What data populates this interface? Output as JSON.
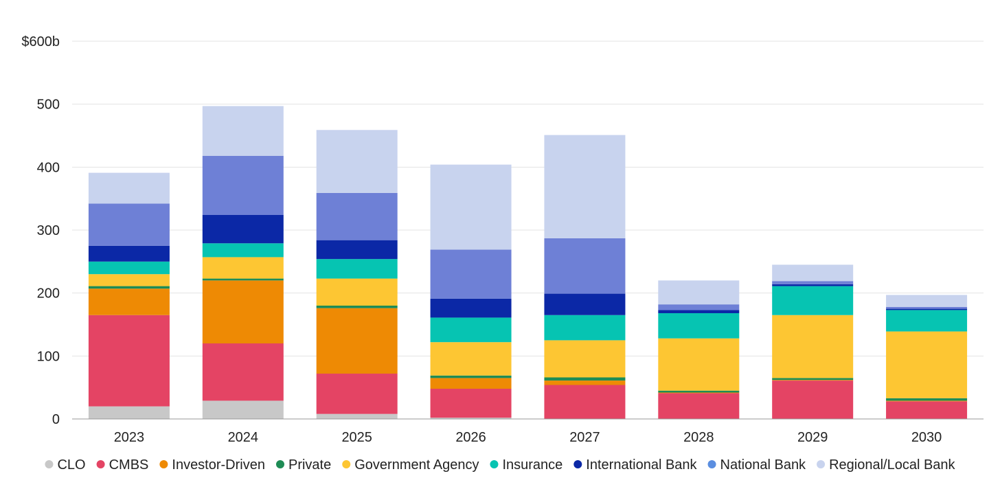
{
  "chart_data": {
    "type": "bar",
    "stacked": true,
    "categories": [
      "2023",
      "2024",
      "2025",
      "2026",
      "2027",
      "2028",
      "2029",
      "2030"
    ],
    "ylim": [
      0,
      600
    ],
    "yticks": [
      0,
      100,
      200,
      300,
      400,
      500,
      600
    ],
    "ytick_labels": [
      "0",
      "100",
      "200",
      "300",
      "400",
      "500",
      "$600b"
    ],
    "grid": true,
    "legend_position": "bottom",
    "series": [
      {
        "name": "CLO",
        "color": "#c8c8c8",
        "values": [
          20,
          29,
          8,
          2,
          0,
          0,
          0,
          0
        ]
      },
      {
        "name": "CMBS",
        "color": "#e44464",
        "values": [
          145,
          91,
          64,
          46,
          54,
          41,
          61,
          28
        ]
      },
      {
        "name": "Investor-Driven",
        "color": "#ee8a04",
        "values": [
          42,
          100,
          104,
          17,
          7,
          1,
          1,
          1
        ]
      },
      {
        "name": "Private",
        "color": "#1e8c55",
        "values": [
          4,
          3,
          4,
          4,
          5,
          3,
          3,
          4
        ]
      },
      {
        "name": "Government Agency",
        "color": "#fdc633",
        "values": [
          19,
          34,
          43,
          53,
          59,
          83,
          100,
          106
        ]
      },
      {
        "name": "Insurance",
        "color": "#06c4b2",
        "values": [
          20,
          22,
          31,
          39,
          40,
          40,
          46,
          34
        ]
      },
      {
        "name": "International Bank",
        "color": "#0b28a6",
        "values": [
          25,
          45,
          30,
          30,
          34,
          5,
          3,
          2
        ]
      },
      {
        "name": "National Bank",
        "color": "#6e80d6",
        "values": [
          67,
          94,
          75,
          78,
          88,
          9,
          5,
          3
        ]
      },
      {
        "name": "Regional/Local Bank",
        "color": "#c8d3ee",
        "values": [
          49,
          79,
          100,
          135,
          164,
          38,
          26,
          19
        ]
      }
    ],
    "legend_marker_colors": {
      "National Bank": "#5b8ee0"
    }
  }
}
